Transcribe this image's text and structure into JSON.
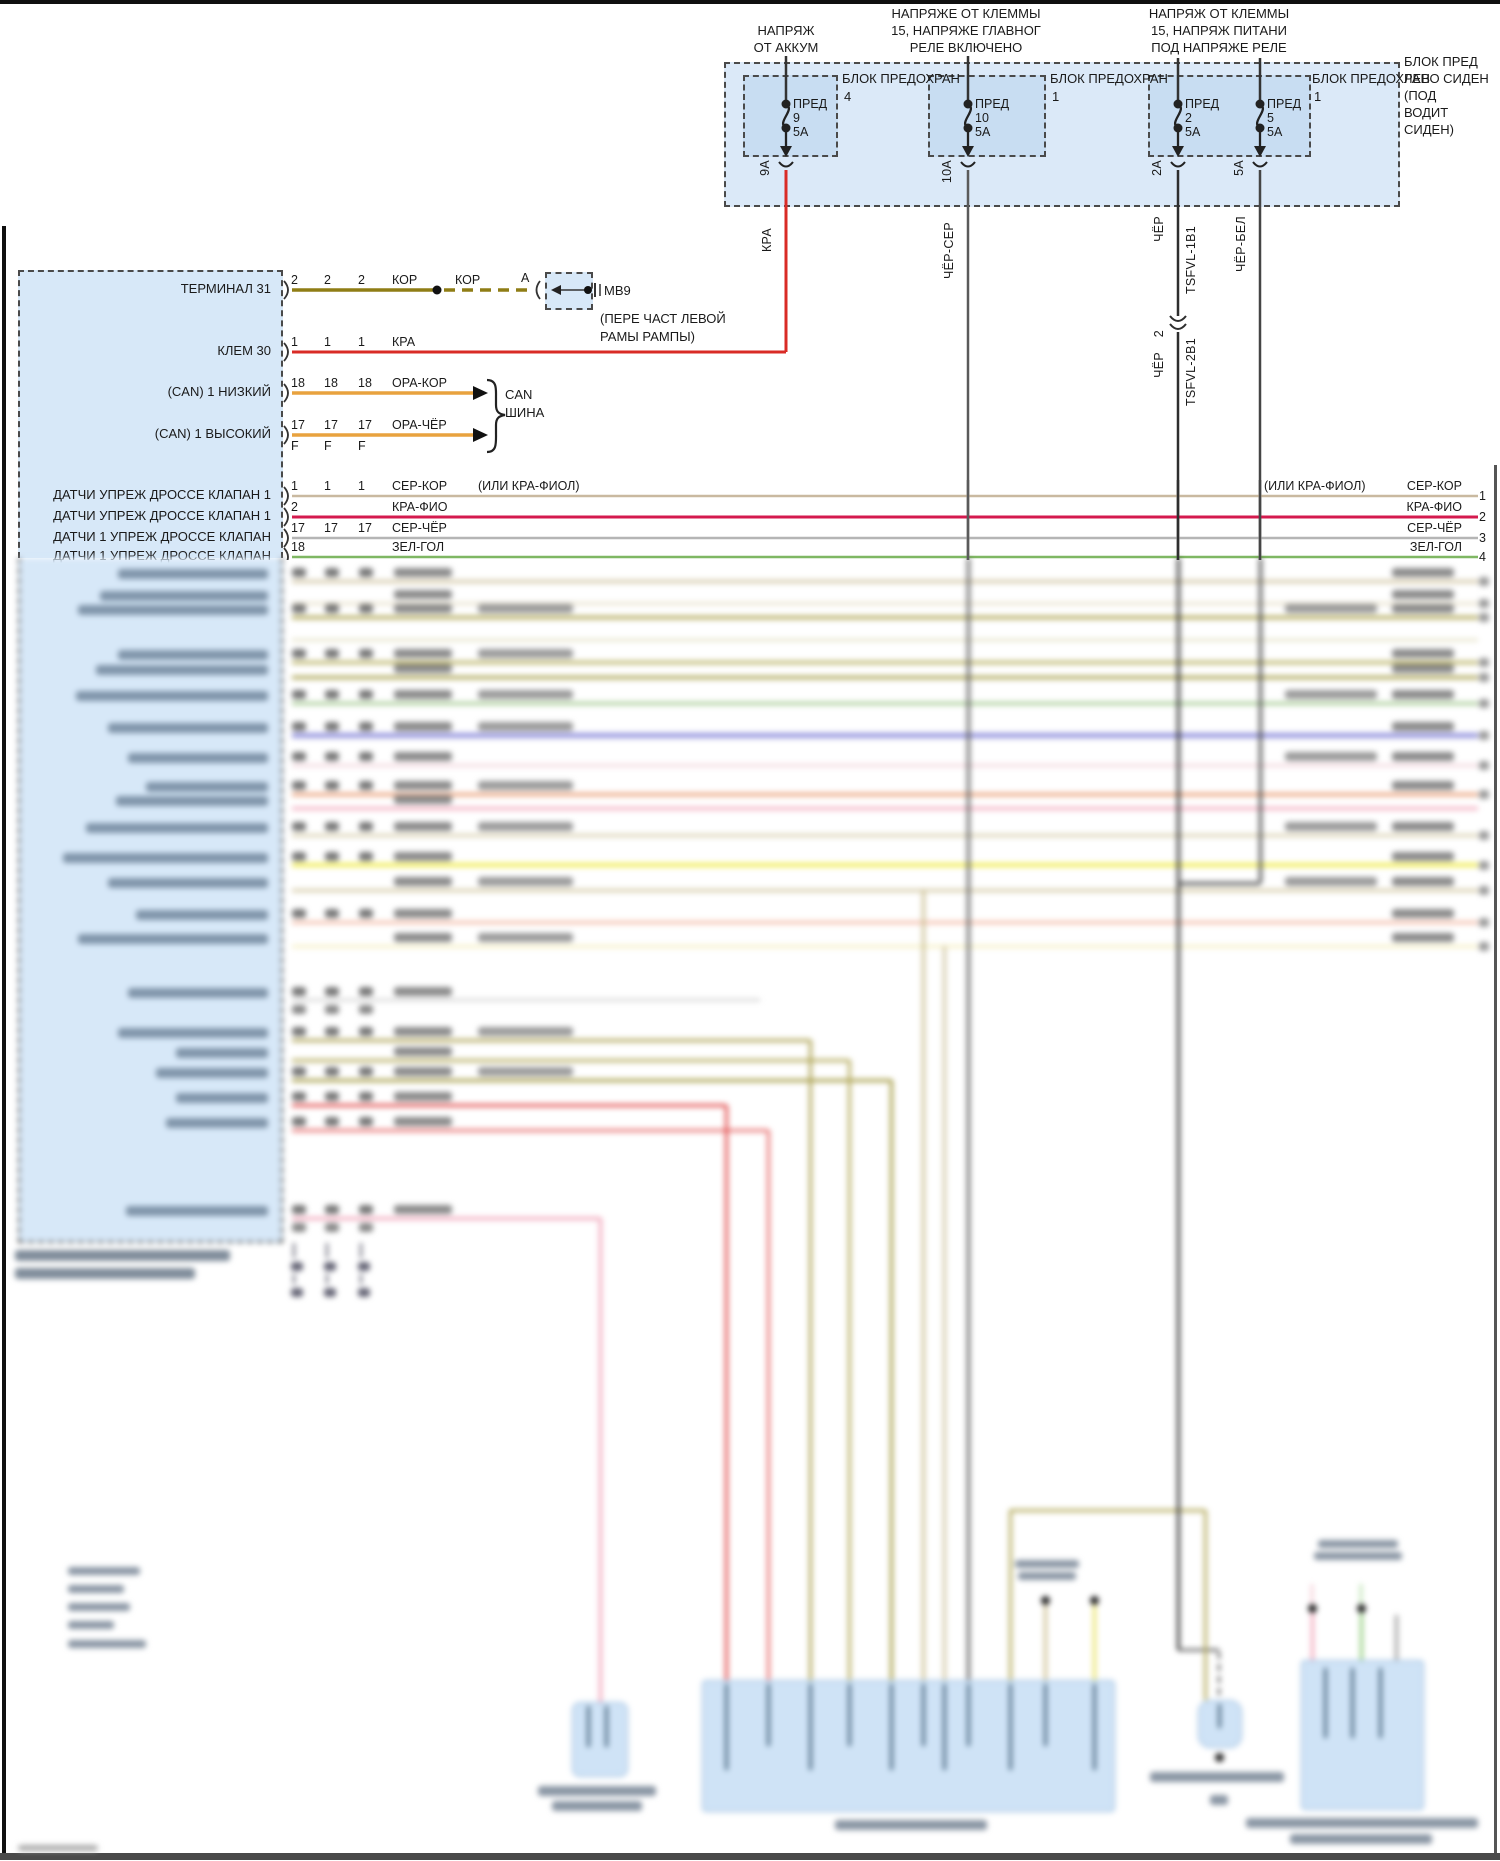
{
  "top_labels": {
    "battery": [
      "НАПРЯЖ",
      "ОТ АККУМ"
    ],
    "term_main": [
      "НАПРЯЖЕ ОТ КЛЕММЫ",
      "15, НАПРЯЖЕ ГЛАВНОГ",
      "РЕЛЕ ВКЛЮЧЕНО"
    ],
    "term_supply": [
      "НАПРЯЖ ОТ КЛЕММЫ",
      "15, НАПРЯЖ ПИТАНИ",
      "ПОД НАПРЯЖЕ РЕЛЕ"
    ]
  },
  "fuse_area": {
    "blocks": [
      {
        "label": "БЛОК ПРЕДОХРАН",
        "num": "4"
      },
      {
        "label": "БЛОК ПРЕДОХРАН",
        "num": "1"
      },
      {
        "label": "БЛОК ПРЕДОХРАН",
        "num": "1"
      }
    ],
    "side": [
      "БЛОК ПРЕД",
      "ЛЕВО СИДЕН",
      "(ПОД",
      "ВОДИТ",
      "СИДЕН)"
    ],
    "fuses": [
      {
        "name": "ПРЕД",
        "num": "9",
        "amp": "5А",
        "out": "9А",
        "wire": "КРА"
      },
      {
        "name": "ПРЕД",
        "num": "10",
        "amp": "5А",
        "out": "10А",
        "wire": "ЧЁР-СЕР"
      },
      {
        "name": "ПРЕД",
        "num": "2",
        "amp": "5А",
        "out": "2А",
        "wire": "ЧЁР",
        "harness_above": "TSFVL-1B1",
        "break_pin": "2",
        "wire_below": "ЧЁР",
        "harness_below": "TSFVL-2B1"
      },
      {
        "name": "ПРЕД",
        "num": "5",
        "amp": "5А",
        "out": "5А",
        "wire": "ЧЁР-БЕЛ"
      }
    ]
  },
  "mb9": {
    "kor1": "КОР",
    "kor2": "КОР",
    "pin_a": "А",
    "code": "МВ9",
    "desc1": "(ПЕРЕ ЧАСТ ЛЕВОЙ",
    "desc2": "РАМЫ РАМПЫ)"
  },
  "can": {
    "l1": "CAN",
    "l2": "ШИНА"
  },
  "ecu_rows": [
    {
      "label": "ТЕРМИНАЛ 31",
      "pins": [
        "2",
        "2",
        "2"
      ]
    },
    {
      "label": "КЛЕМ 30",
      "pins": [
        "1",
        "1",
        "1"
      ],
      "wire": "КРА"
    },
    {
      "label": "(CAN) 1 НИЗКИЙ",
      "pins": [
        "18",
        "18",
        "18"
      ],
      "wire": "ОРА-КОР"
    },
    {
      "label": "(CAN) 1 ВЫСОКИЙ",
      "pins": [
        "17",
        "17",
        "17"
      ],
      "sub": [
        "F",
        "F",
        "F"
      ],
      "wire": "ОРА-ЧЁР"
    },
    {
      "label": "ДАТЧИ УПРЕЖ ДРОССЕ КЛАПАН 1",
      "pins": [
        "1",
        "1",
        "1"
      ],
      "wire": "СЕР-КОР",
      "alt": "(ИЛИ КРА-ФИОЛ)",
      "right_alt": "(ИЛИ КРА-ФИОЛ)",
      "right_wire": "СЕР-КОР",
      "right_pin": "1"
    },
    {
      "label": "ДАТЧИ УПРЕЖ ДРОССЕ КЛАПАН 1",
      "pins": [
        "2"
      ],
      "wire": "КРА-ФИО",
      "right_wire": "КРА-ФИО",
      "right_pin": "2"
    },
    {
      "label": "ДАТЧИ 1 УПРЕЖ ДРОССЕ КЛАПАН",
      "pins": [
        "17",
        "17",
        "17"
      ],
      "wire": "СЕР-ЧЁР",
      "right_wire": "СЕР-ЧЁР",
      "right_pin": "3"
    },
    {
      "label": "ДАТЧИ 1 УПРЕЖ ДРОССЕ КЛАПАН",
      "pins": [
        "18"
      ],
      "wire": "ЗЕЛ-ГОЛ",
      "right_wire": "ЗЕЛ-ГОЛ",
      "right_pin": "4"
    }
  ],
  "colors": {
    "kor_brown": "#8f7d15",
    "kra_red": "#d92b26",
    "ora_orange": "#e8a23e",
    "ser_kor_tan": "#c9b9a0",
    "kra_fio_crimson": "#d41a4e",
    "ser_cher_gray": "#b5b5b5",
    "zel_gol_green": "#7fb763",
    "cher_ser_dark": "#5a5a5a",
    "cher_black": "#2e2e2e",
    "cher_bel": "#454545",
    "box_fill_light": "#dbe9f8",
    "box_fill_inner": "#c8ddf2",
    "ecu_fill": "#d7e8f8"
  }
}
